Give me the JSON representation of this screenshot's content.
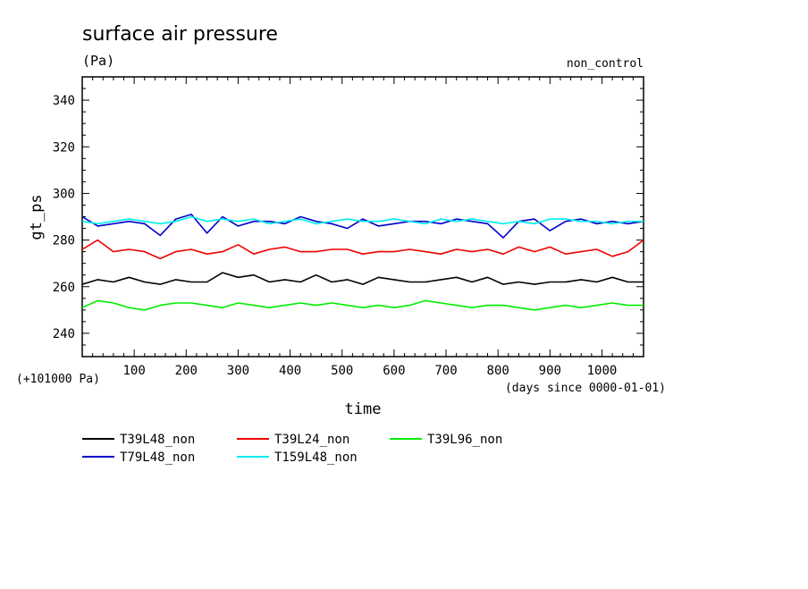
{
  "chart_data": {
    "type": "line",
    "title": "surface air pressure",
    "unit": "(Pa)",
    "run_label": "non_control",
    "ylabel": "gt_ps",
    "xlabel": "time",
    "x_unit_note": "(days since 0000-01-01)",
    "y_offset_note": "(+101000 Pa)",
    "xlim": [
      0,
      1080
    ],
    "ylim": [
      230,
      350
    ],
    "x_ticks": [
      100,
      200,
      300,
      400,
      500,
      600,
      700,
      800,
      900,
      1000
    ],
    "y_ticks": [
      240,
      260,
      280,
      300,
      320,
      340
    ],
    "legend_position": "bottom-left",
    "x": [
      0,
      30,
      60,
      90,
      120,
      150,
      180,
      210,
      240,
      270,
      300,
      330,
      360,
      390,
      420,
      450,
      480,
      510,
      540,
      570,
      600,
      630,
      660,
      690,
      720,
      750,
      780,
      810,
      840,
      870,
      900,
      930,
      960,
      990,
      1020,
      1050,
      1080
    ],
    "series": [
      {
        "name": "T39L48_non",
        "color": "#000000",
        "values": [
          261,
          263,
          262,
          264,
          262,
          261,
          263,
          262,
          262,
          266,
          264,
          265,
          262,
          263,
          262,
          265,
          262,
          263,
          261,
          264,
          263,
          262,
          262,
          263,
          264,
          262,
          264,
          261,
          262,
          261,
          262,
          262,
          263,
          262,
          264,
          262,
          262
        ]
      },
      {
        "name": "T39L24_non",
        "color": "#ee0000",
        "values": [
          276,
          280,
          275,
          276,
          275,
          272,
          275,
          276,
          274,
          275,
          278,
          274,
          276,
          277,
          275,
          275,
          276,
          276,
          274,
          275,
          275,
          276,
          275,
          274,
          276,
          275,
          276,
          274,
          277,
          275,
          277,
          274,
          275,
          276,
          273,
          275,
          280
        ]
      },
      {
        "name": "T39L96_non",
        "color": "#00ee00",
        "values": [
          251,
          254,
          253,
          251,
          250,
          252,
          253,
          253,
          252,
          251,
          253,
          252,
          251,
          252,
          253,
          252,
          253,
          252,
          251,
          252,
          251,
          252,
          254,
          253,
          252,
          251,
          252,
          252,
          251,
          250,
          251,
          252,
          251,
          252,
          253,
          252,
          252
        ]
      },
      {
        "name": "T79L48_non",
        "color": "#0000cc",
        "values": [
          290,
          286,
          287,
          288,
          287,
          282,
          289,
          291,
          283,
          290,
          286,
          288,
          288,
          287,
          290,
          288,
          287,
          285,
          289,
          286,
          287,
          288,
          288,
          287,
          289,
          288,
          287,
          281,
          288,
          289,
          284,
          288,
          289,
          287,
          288,
          287,
          288
        ]
      },
      {
        "name": "T159L48_non",
        "color": "#00eeee",
        "values": [
          288,
          287,
          288,
          289,
          288,
          287,
          288,
          290,
          288,
          289,
          288,
          289,
          287,
          288,
          289,
          287,
          288,
          289,
          288,
          288,
          289,
          288,
          287,
          289,
          288,
          289,
          288,
          287,
          288,
          287,
          289,
          289,
          288,
          288,
          287,
          288,
          288
        ]
      }
    ]
  }
}
